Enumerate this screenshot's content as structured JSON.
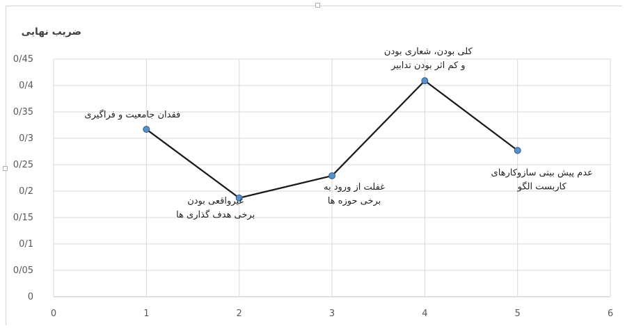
{
  "chart_data": {
    "type": "line",
    "title": "",
    "ylabel": "ضریب نهایی",
    "xlabel": "",
    "xlim": [
      0,
      6
    ],
    "ylim": [
      0,
      0.45
    ],
    "x_ticks": [
      "0",
      "1",
      "2",
      "3",
      "4",
      "5",
      "6"
    ],
    "y_ticks": [
      "0",
      "0/05",
      "0/1",
      "0/15",
      "0/2",
      "0/25",
      "0/3",
      "0/35",
      "0/4",
      "0/45"
    ],
    "grid": true,
    "line_color": "#1a1a1a",
    "marker_color": "#5b8fc7",
    "points": [
      {
        "x": 1,
        "y": 0.317,
        "label": [
          "فقدان جامعیت و فراگیری"
        ],
        "label_pos": "above"
      },
      {
        "x": 2,
        "y": 0.187,
        "label": [
          "غیرواقعی بودن",
          "برخی هدف گذاری ها"
        ],
        "label_pos": "below"
      },
      {
        "x": 3,
        "y": 0.229,
        "label": [
          "غفلت از ورود به",
          "برخی حوزه ها"
        ],
        "label_pos": "below"
      },
      {
        "x": 4,
        "y": 0.409,
        "label": [
          "کلی بودن، شعاری بودن",
          "و کم اثر بودن تدابیر"
        ],
        "label_pos": "above"
      },
      {
        "x": 5,
        "y": 0.277,
        "label": [
          "عدم پیش بینی سازوکارهای",
          "کاربست الگو"
        ],
        "label_pos": "below"
      }
    ]
  }
}
